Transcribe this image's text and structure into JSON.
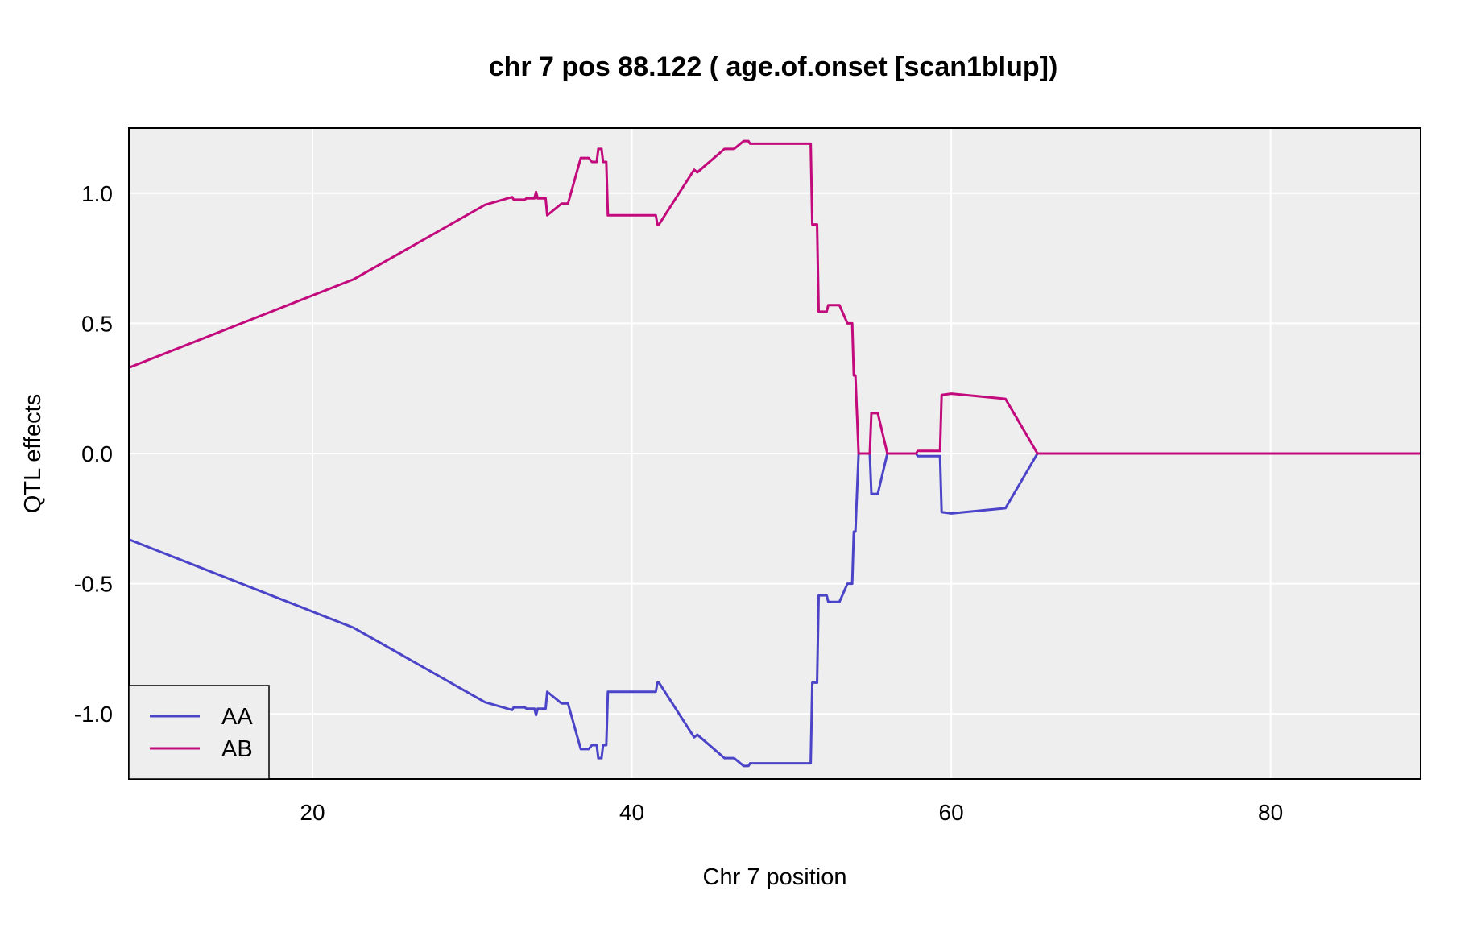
{
  "chart_data": {
    "type": "line",
    "title": "chr 7 pos 88.122 ( age.of.onset  [scan1blup])",
    "xlabel": "Chr 7 position",
    "ylabel": "QTL effects",
    "xlim": [
      8.5,
      89.4
    ],
    "ylim": [
      -1.25,
      1.25
    ],
    "x_ticks": [
      20,
      40,
      60,
      80
    ],
    "y_ticks": [
      -1.0,
      -0.5,
      0.0,
      0.5,
      1.0
    ],
    "x_tick_labels": [
      "20",
      "40",
      "60",
      "80"
    ],
    "y_tick_labels": [
      "-1.0",
      "-0.5",
      "0.0",
      "0.5",
      "1.0"
    ],
    "grid": true,
    "legend_position": "bottom-left",
    "background_color": "#eeeeee",
    "series": [
      {
        "name": "AA",
        "color": "#4b44c8",
        "points": [
          [
            8.5,
            -0.33
          ],
          [
            22.6,
            -0.67
          ],
          [
            30.8,
            -0.955
          ],
          [
            32.5,
            -0.985
          ],
          [
            32.6,
            -0.975
          ],
          [
            33.3,
            -0.975
          ],
          [
            33.4,
            -0.98
          ],
          [
            33.9,
            -0.98
          ],
          [
            34.0,
            -1.005
          ],
          [
            34.1,
            -0.98
          ],
          [
            34.6,
            -0.98
          ],
          [
            34.7,
            -0.915
          ],
          [
            35.6,
            -0.96
          ],
          [
            36.0,
            -0.96
          ],
          [
            36.8,
            -1.135
          ],
          [
            37.3,
            -1.135
          ],
          [
            37.5,
            -1.12
          ],
          [
            37.8,
            -1.12
          ],
          [
            37.9,
            -1.17
          ],
          [
            38.1,
            -1.17
          ],
          [
            38.2,
            -1.12
          ],
          [
            38.4,
            -1.12
          ],
          [
            38.5,
            -0.915
          ],
          [
            41.5,
            -0.915
          ],
          [
            41.6,
            -0.88
          ],
          [
            41.7,
            -0.88
          ],
          [
            43.9,
            -1.09
          ],
          [
            44.1,
            -1.08
          ],
          [
            45.8,
            -1.17
          ],
          [
            46.4,
            -1.17
          ],
          [
            47.0,
            -1.2
          ],
          [
            47.3,
            -1.2
          ],
          [
            47.4,
            -1.19
          ],
          [
            51.2,
            -1.19
          ],
          [
            51.3,
            -0.88
          ],
          [
            51.6,
            -0.88
          ],
          [
            51.7,
            -0.545
          ],
          [
            52.2,
            -0.545
          ],
          [
            52.3,
            -0.57
          ],
          [
            53.0,
            -0.57
          ],
          [
            53.5,
            -0.5
          ],
          [
            53.8,
            -0.5
          ],
          [
            53.9,
            -0.3
          ],
          [
            54.0,
            -0.3
          ],
          [
            54.2,
            0.0
          ],
          [
            54.9,
            0.0
          ],
          [
            55.0,
            -0.155
          ],
          [
            55.4,
            -0.155
          ],
          [
            56.0,
            0.0
          ],
          [
            57.8,
            0.0
          ],
          [
            57.9,
            -0.01
          ],
          [
            58.7,
            -0.01
          ],
          [
            59.3,
            -0.01
          ],
          [
            59.4,
            -0.225
          ],
          [
            60.0,
            -0.23
          ],
          [
            63.4,
            -0.21
          ],
          [
            65.4,
            0.0
          ],
          [
            89.4,
            0.0
          ]
        ]
      },
      {
        "name": "AB",
        "color": "#c20a7c",
        "points": [
          [
            8.5,
            0.33
          ],
          [
            22.6,
            0.67
          ],
          [
            30.8,
            0.955
          ],
          [
            32.5,
            0.985
          ],
          [
            32.6,
            0.975
          ],
          [
            33.3,
            0.975
          ],
          [
            33.4,
            0.98
          ],
          [
            33.9,
            0.98
          ],
          [
            34.0,
            1.005
          ],
          [
            34.1,
            0.98
          ],
          [
            34.6,
            0.98
          ],
          [
            34.7,
            0.915
          ],
          [
            35.6,
            0.96
          ],
          [
            36.0,
            0.96
          ],
          [
            36.8,
            1.135
          ],
          [
            37.3,
            1.135
          ],
          [
            37.5,
            1.12
          ],
          [
            37.8,
            1.12
          ],
          [
            37.9,
            1.17
          ],
          [
            38.1,
            1.17
          ],
          [
            38.2,
            1.12
          ],
          [
            38.4,
            1.12
          ],
          [
            38.5,
            0.915
          ],
          [
            41.5,
            0.915
          ],
          [
            41.6,
            0.88
          ],
          [
            41.7,
            0.88
          ],
          [
            43.9,
            1.09
          ],
          [
            44.1,
            1.08
          ],
          [
            45.8,
            1.17
          ],
          [
            46.4,
            1.17
          ],
          [
            47.0,
            1.2
          ],
          [
            47.3,
            1.2
          ],
          [
            47.4,
            1.19
          ],
          [
            51.2,
            1.19
          ],
          [
            51.3,
            0.88
          ],
          [
            51.6,
            0.88
          ],
          [
            51.7,
            0.545
          ],
          [
            52.2,
            0.545
          ],
          [
            52.3,
            0.57
          ],
          [
            53.0,
            0.57
          ],
          [
            53.5,
            0.5
          ],
          [
            53.8,
            0.5
          ],
          [
            53.9,
            0.3
          ],
          [
            54.0,
            0.3
          ],
          [
            54.2,
            0.0
          ],
          [
            54.9,
            0.0
          ],
          [
            55.0,
            0.155
          ],
          [
            55.4,
            0.155
          ],
          [
            56.0,
            0.0
          ],
          [
            57.8,
            0.0
          ],
          [
            57.9,
            0.01
          ],
          [
            58.7,
            0.01
          ],
          [
            59.3,
            0.01
          ],
          [
            59.4,
            0.225
          ],
          [
            60.0,
            0.23
          ],
          [
            63.4,
            0.21
          ],
          [
            65.4,
            0.0
          ],
          [
            89.4,
            0.0
          ]
        ]
      }
    ]
  }
}
